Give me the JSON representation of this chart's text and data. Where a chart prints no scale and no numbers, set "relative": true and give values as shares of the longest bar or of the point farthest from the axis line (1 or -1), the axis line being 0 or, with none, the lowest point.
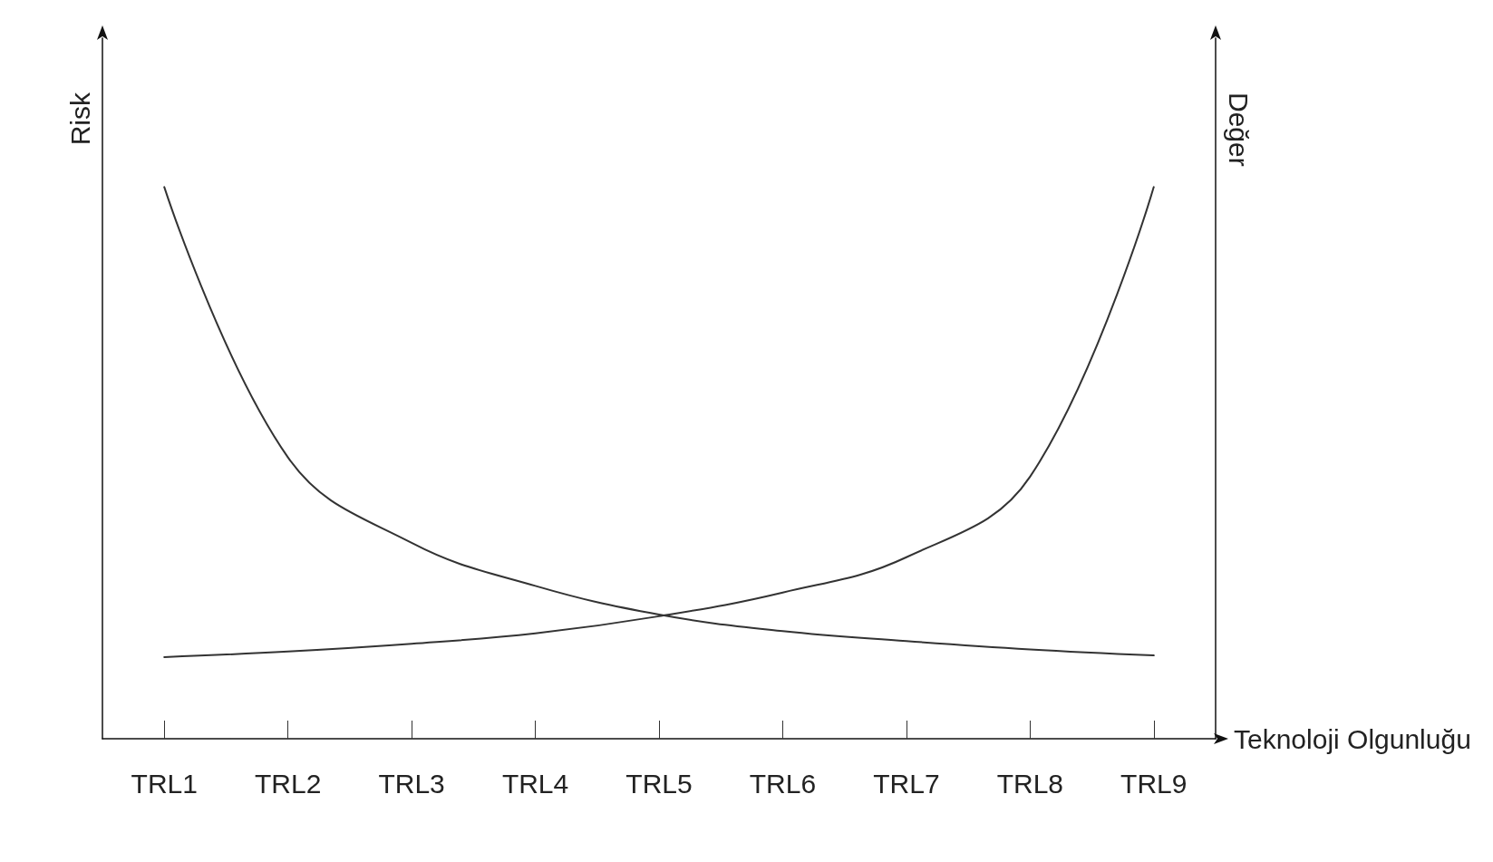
{
  "chart_data": {
    "type": "line",
    "relative": true,
    "xlabel": "Teknoloji Olgunluğu",
    "ylabel": "Risk",
    "y2label": "Değer",
    "categories": [
      "TRL1",
      "TRL2",
      "TRL3",
      "TRL4",
      "TRL5",
      "TRL6",
      "TRL7",
      "TRL8",
      "TRL9"
    ],
    "series": [
      {
        "color": "#333333",
        "values": [
          1,
          0.51,
          0.355,
          0.277,
          0.225,
          0.195,
          0.177,
          0.162,
          0.151
        ]
      },
      {
        "color": "#333333",
        "values": [
          0.148,
          0.158,
          0.172,
          0.191,
          0.222,
          0.265,
          0.329,
          0.475,
          1
        ]
      }
    ],
    "marker": "none",
    "line_style": "solid",
    "grid": false
  }
}
